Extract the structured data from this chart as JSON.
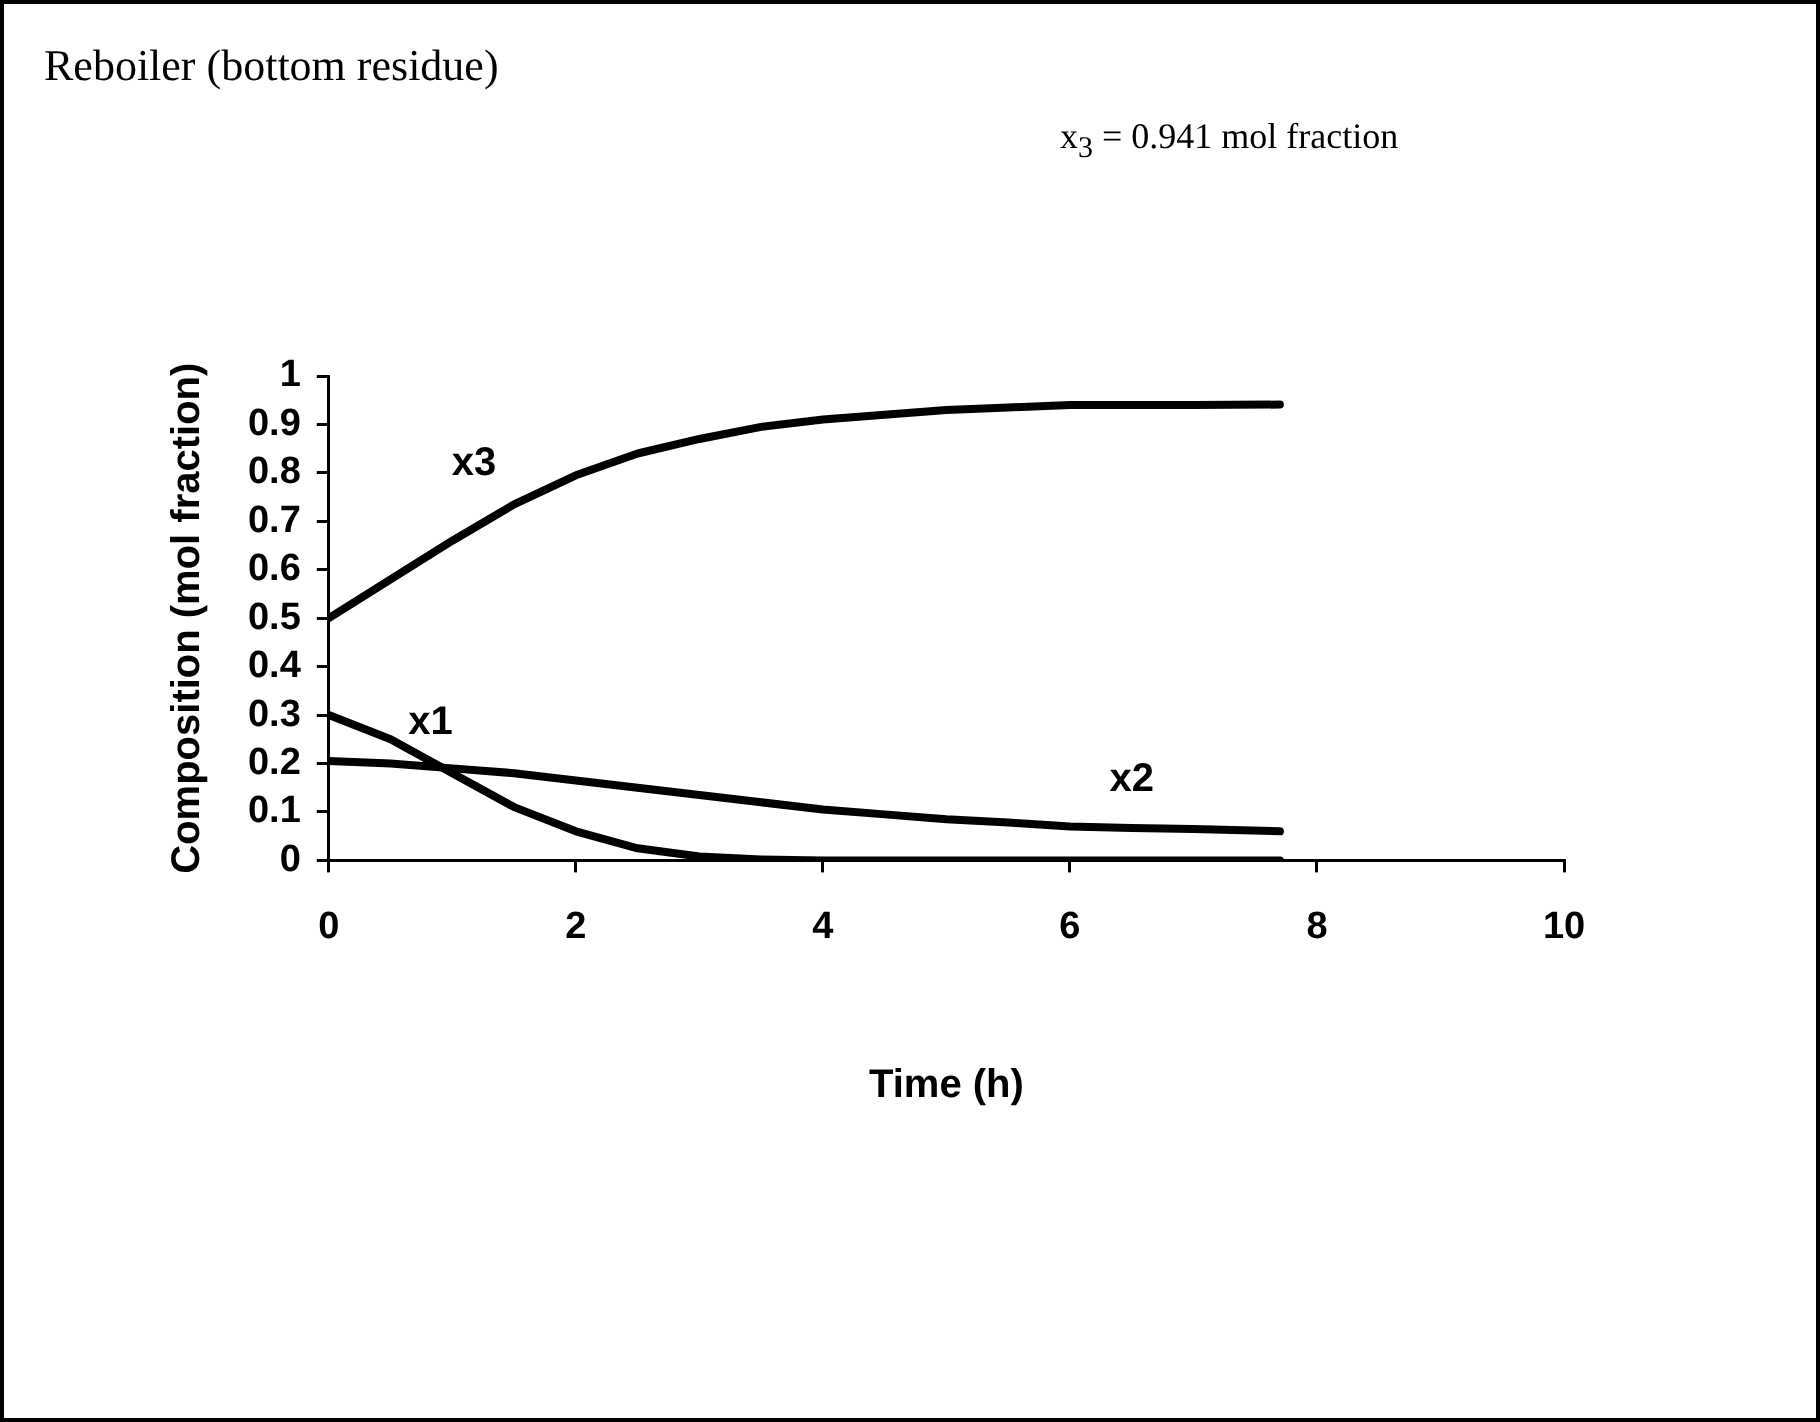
{
  "chart_data": {
    "type": "line",
    "title": "Reboiler (bottom residue)",
    "xlabel": "Time (h)",
    "ylabel": "Composition (mol fraction)",
    "annotations": [
      "x$_{3}$ = 0.941 mol fraction"
    ],
    "xlim": [
      0,
      10
    ],
    "xticks": [
      0,
      2,
      4,
      6,
      8,
      10
    ],
    "ylim": [
      0,
      1
    ],
    "yticks": [
      0,
      0.1,
      0.2,
      0.3,
      0.4,
      0.5,
      0.6,
      0.7,
      0.8,
      0.9,
      1
    ],
    "grid": false,
    "legend": false,
    "marker": "none",
    "line_style": "solid",
    "x": [
      0,
      0.5,
      1,
      1.5,
      2,
      2.5,
      3,
      3.5,
      4,
      4.5,
      5,
      5.5,
      6,
      6.5,
      7,
      7.7
    ],
    "series": [
      {
        "name": "x1",
        "color": "#000000",
        "values": [
          0.3,
          0.25,
          0.18,
          0.11,
          0.06,
          0.025,
          0.008,
          0.002,
          0,
          0,
          0,
          0,
          0,
          0,
          0,
          0
        ]
      },
      {
        "name": "x2",
        "color": "#000000",
        "values": [
          0.205,
          0.2,
          0.19,
          0.18,
          0.165,
          0.15,
          0.135,
          0.12,
          0.105,
          0.095,
          0.085,
          0.078,
          0.07,
          0.067,
          0.065,
          0.06
        ]
      },
      {
        "name": "x3",
        "color": "#000000",
        "values": [
          0.5,
          0.58,
          0.66,
          0.735,
          0.795,
          0.84,
          0.87,
          0.895,
          0.91,
          0.92,
          0.93,
          0.935,
          0.94,
          0.94,
          0.94,
          0.941
        ]
      }
    ]
  }
}
